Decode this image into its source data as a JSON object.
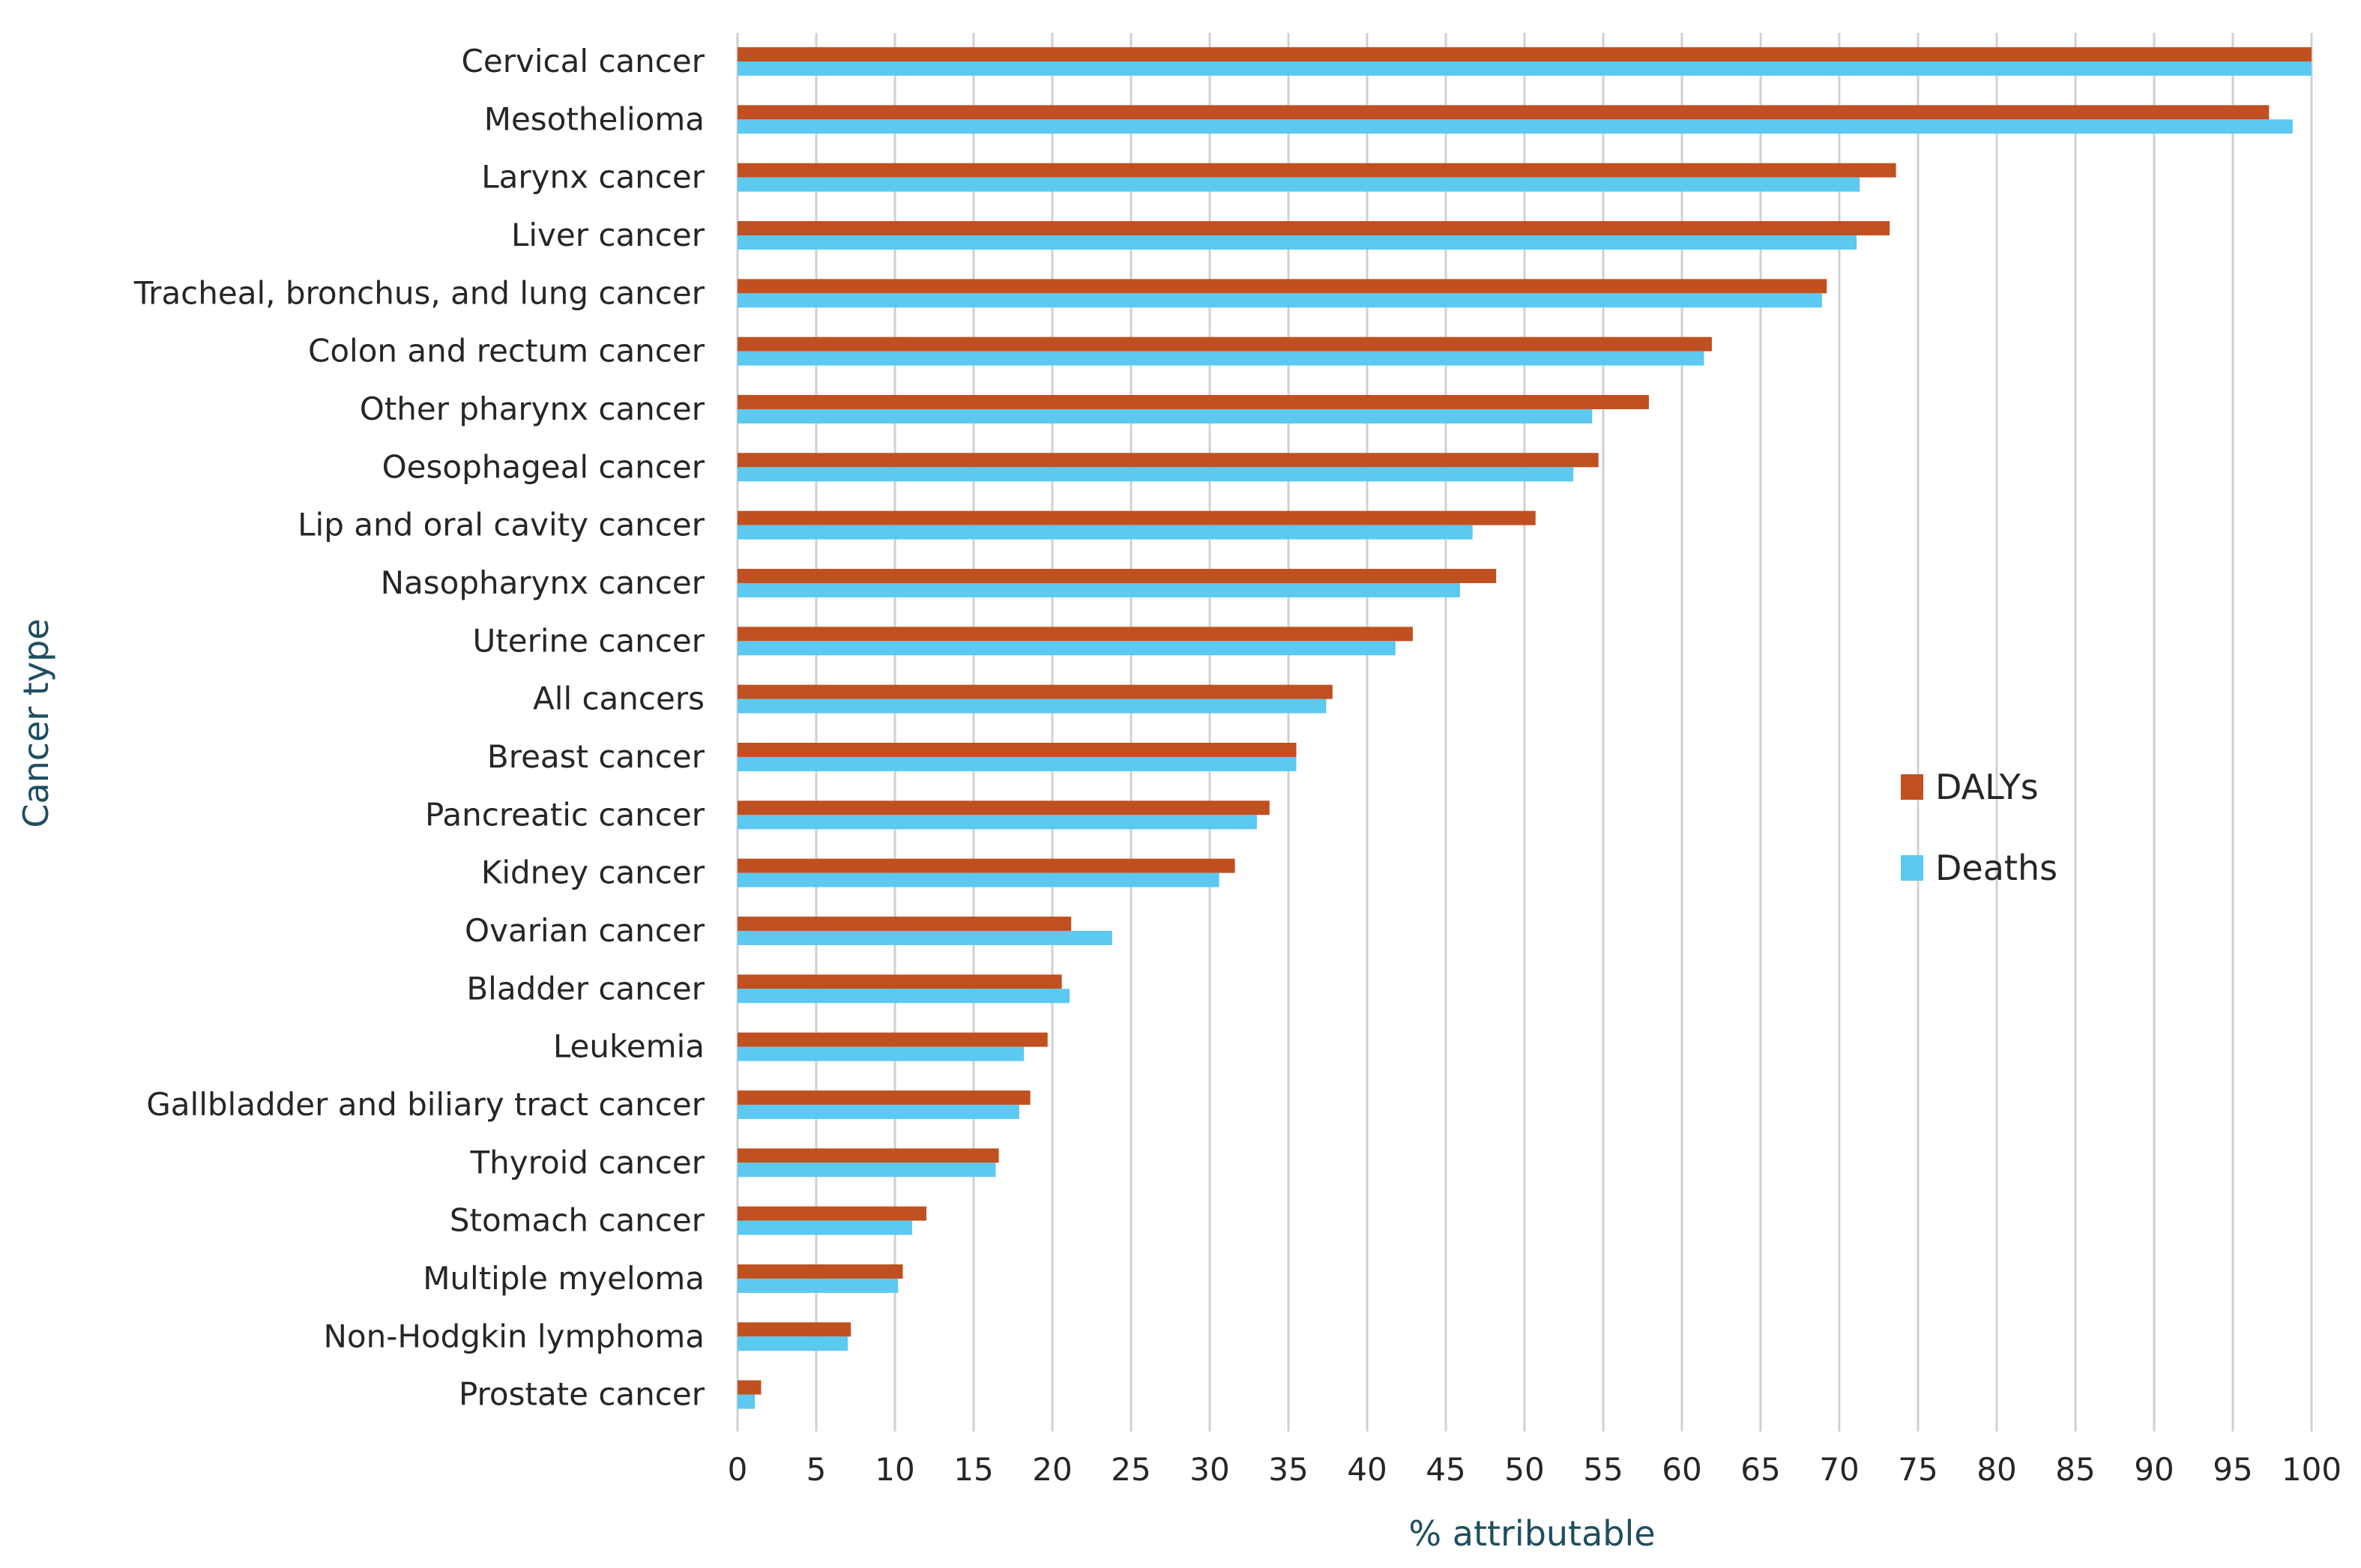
{
  "chart_data": {
    "type": "bar",
    "orientation": "horizontal",
    "categories": [
      "Cervical cancer",
      "Mesothelioma",
      "Larynx cancer",
      "Liver cancer",
      "Tracheal, bronchus, and lung cancer",
      "Colon and rectum cancer",
      "Other pharynx cancer",
      "Oesophageal cancer",
      "Lip and oral cavity cancer",
      "Nasopharynx cancer",
      "Uterine cancer",
      "All cancers",
      "Breast cancer",
      "Pancreatic cancer",
      "Kidney cancer",
      "Ovarian cancer",
      "Bladder cancer",
      "Leukemia",
      "Gallbladder and biliary tract cancer",
      "Thyroid cancer",
      "Stomach cancer",
      "Multiple myeloma",
      "Non-Hodgkin lymphoma",
      "Prostate cancer"
    ],
    "series": [
      {
        "name": "DALYs",
        "color": "#c0501f",
        "values": [
          100,
          97.3,
          73.6,
          73.2,
          69.2,
          61.9,
          57.9,
          54.7,
          50.7,
          48.2,
          42.9,
          37.8,
          35.5,
          33.8,
          31.6,
          21.2,
          20.6,
          19.7,
          18.6,
          16.6,
          12.0,
          10.5,
          7.2,
          1.5
        ]
      },
      {
        "name": "Deaths",
        "color": "#5bc9f0",
        "values": [
          100,
          98.8,
          71.3,
          71.1,
          68.9,
          61.4,
          54.3,
          53.1,
          46.7,
          45.9,
          41.8,
          37.4,
          35.5,
          33.0,
          30.6,
          23.8,
          21.1,
          18.2,
          17.9,
          16.4,
          11.1,
          10.2,
          7.0,
          1.1
        ]
      }
    ],
    "xlabel": "% attributable",
    "ylabel": "Cancer type",
    "xlim": [
      0,
      100
    ],
    "xticks": [
      0,
      5,
      10,
      15,
      20,
      25,
      30,
      35,
      40,
      45,
      50,
      55,
      60,
      65,
      70,
      75,
      80,
      85,
      90,
      95,
      100
    ],
    "grid": "vertical",
    "legend": "right-center"
  }
}
